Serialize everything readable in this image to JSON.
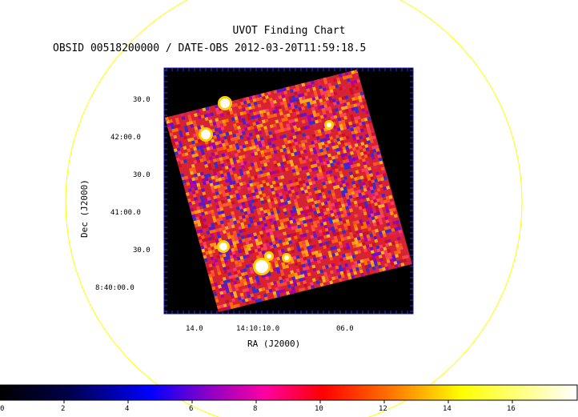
{
  "header": {
    "title": "UVOT Finding Chart",
    "subtitle": "OBSID 00518200000 / DATE-OBS 2012-03-20T11:59:18.5"
  },
  "axes": {
    "xlabel": "RA (J2000)",
    "ylabel": "Dec (J2000)",
    "dec_ticks": [
      "30.0",
      "42:00.0",
      "30.0",
      "41:00.0",
      "30.0",
      "8:40:00.0"
    ],
    "ra_ticks": [
      "14.0",
      "14:10:10.0",
      "06.0"
    ]
  },
  "colorbar": {
    "ticks": [
      "0",
      "2",
      "4",
      "6",
      "8",
      "10",
      "12",
      "14",
      "16"
    ],
    "range": [
      0,
      17.8
    ],
    "colors": [
      "#000000",
      "#0000ff",
      "#ff0000",
      "#ffff00",
      "#ffffff"
    ]
  },
  "style": {
    "circle_color": "#ffff00",
    "frame_color": "#0000ff"
  }
}
